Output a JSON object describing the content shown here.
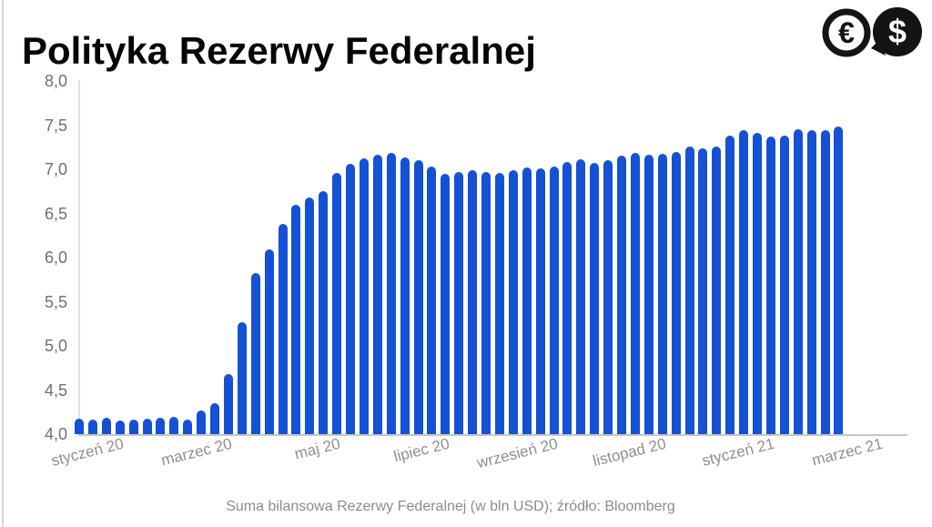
{
  "page": {
    "title": "Polityka Rezerwy Federalnej",
    "caption": "Suma bilansowa Rezerwy Federalnej (w bln USD); źródło: Bloomberg"
  },
  "icons": {
    "euro_symbol": "€",
    "dollar_symbol": "$"
  },
  "colors": {
    "bar_blue": "#1551d5",
    "axis_gray": "#c6c6c6",
    "tick_text_gray": "#6f6f6f",
    "xtick_text_gray": "#8f8f8f"
  },
  "chart_data": {
    "type": "bar",
    "title": "Polityka Rezerwy Federalnej",
    "caption": "Suma bilansowa Rezerwy Federalnej (w bln USD); źródło: Bloomberg",
    "source": "Bloomberg",
    "unit": "bln USD",
    "grid": false,
    "legend": false,
    "ylim": [
      4.0,
      8.0
    ],
    "ytick_labels": [
      "4,0",
      "4,5",
      "5,0",
      "5,5",
      "6,0",
      "6,5",
      "7,0",
      "7,5",
      "8,0"
    ],
    "xtick_labels": [
      "styczeń 20",
      "marzec 20",
      "maj 20",
      "lipiec 20",
      "wrzesień 20",
      "listopad 20",
      "styczeń 21",
      "marzec 21"
    ],
    "xtick_bar_indices": [
      0,
      8,
      16,
      24,
      32,
      40,
      48,
      56
    ],
    "values": [
      4.18,
      4.16,
      4.19,
      4.15,
      4.17,
      4.18,
      4.19,
      4.2,
      4.17,
      4.27,
      4.35,
      4.68,
      5.27,
      5.82,
      6.09,
      6.38,
      6.6,
      6.68,
      6.75,
      6.96,
      7.06,
      7.12,
      7.17,
      7.19,
      7.13,
      7.1,
      7.03,
      6.95,
      6.97,
      6.99,
      6.97,
      6.96,
      6.99,
      7.02,
      7.01,
      7.03,
      7.08,
      7.11,
      7.07,
      7.1,
      7.15,
      7.19,
      7.16,
      7.18,
      7.2,
      7.26,
      7.24,
      7.26,
      7.38,
      7.44,
      7.41,
      7.37,
      7.38,
      7.45,
      7.44,
      7.44,
      7.48
    ]
  }
}
